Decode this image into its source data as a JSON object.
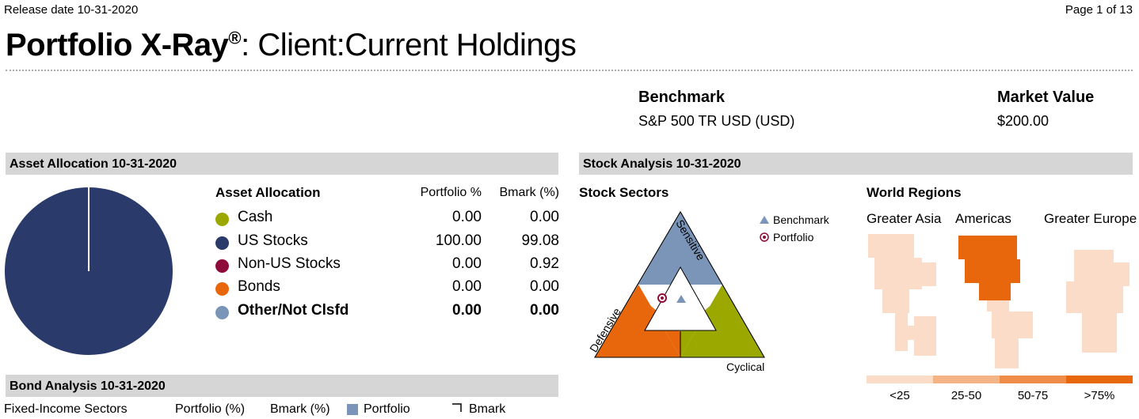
{
  "header": {
    "release_date": "Release date 10-31-2020",
    "page": "Page 1 of 13",
    "title_bold": "Portfolio X-Ray",
    "title_reg": "®",
    "title_rest": ": Client:Current Holdings"
  },
  "summary": {
    "benchmark_label": "Benchmark",
    "benchmark_value": "S&P 500 TR USD (USD)",
    "market_value_label": "Market Value",
    "market_value": "$200.00"
  },
  "asset_allocation": {
    "section_title": "Asset Allocation 10-31-2020",
    "table_title": "Asset Allocation",
    "col_portfolio": "Portfolio %",
    "col_bmark": "Bmark (%)",
    "rows": [
      {
        "label": "Cash",
        "portfolio": "0.00",
        "bmark": "0.00",
        "color": "#9aa800"
      },
      {
        "label": "US Stocks",
        "portfolio": "100.00",
        "bmark": "99.08",
        "color": "#2a3a6a"
      },
      {
        "label": "Non-US Stocks",
        "portfolio": "0.00",
        "bmark": "0.92",
        "color": "#8e0c3a"
      },
      {
        "label": "Bonds",
        "portfolio": "0.00",
        "bmark": "0.00",
        "color": "#e8660c"
      },
      {
        "label": "Other/Not Clsfd",
        "portfolio": "0.00",
        "bmark": "0.00",
        "color": "#7a95b8"
      }
    ],
    "pie_color": "#2a3a6a"
  },
  "stock_analysis": {
    "section_title": "Stock Analysis 10-31-2020",
    "sectors_title": "Stock Sectors",
    "sensitive": "Sensitive",
    "defensive": "Defensive",
    "cyclical": "Cyclical",
    "legend_benchmark": "Benchmark",
    "legend_portfolio": "Portfolio",
    "colors": {
      "sensitive": "#7a95b8",
      "defensive": "#e8660c",
      "cyclical": "#9aa800"
    }
  },
  "world_regions": {
    "title": "World Regions",
    "regions": [
      "Greater Asia",
      "Americas",
      "Greater Europe"
    ],
    "legend": [
      "<25",
      "25-50",
      "50-75",
      ">75%"
    ],
    "legend_colors": [
      "#fadcc8",
      "#f5b486",
      "#f08c4a",
      "#e8660c"
    ]
  },
  "bond_analysis": {
    "section_title": "Bond Analysis 10-31-2020",
    "sectors_label": "Fixed-Income Sectors",
    "col_portfolio": "Portfolio (%)",
    "col_bmark": "Bmark (%)",
    "legend_portfolio": "Portfolio",
    "legend_bmark": "Bmark"
  }
}
